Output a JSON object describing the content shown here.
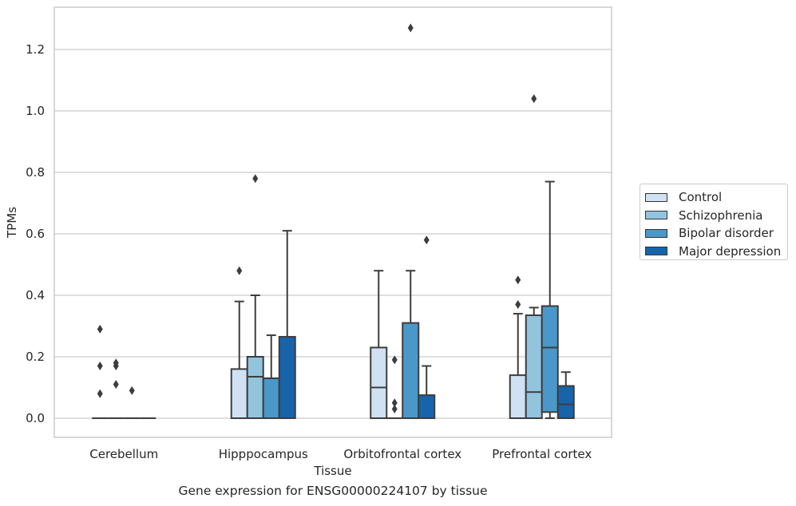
{
  "chart_data": {
    "type": "box",
    "xlabel": "Tissue",
    "ylabel": "TPMs",
    "ylim": [
      -0.06,
      1.34
    ],
    "yticks": [
      0.0,
      0.2,
      0.4,
      0.6,
      0.8,
      1.0,
      1.2
    ],
    "ytick_labels": [
      "0.0",
      "0.2",
      "0.4",
      "0.6",
      "0.8",
      "1.0",
      "1.2"
    ],
    "grid": "horizontal",
    "legend_placement": "outside-right",
    "categories": [
      "Cerebellum",
      "Hipppocampus",
      "Orbitofrontal cortex",
      "Prefrontal cortex"
    ],
    "series": [
      {
        "name": "Control",
        "color": "#cfe1f2",
        "boxes": [
          {
            "q1": 0.0,
            "median": 0.0,
            "q3": 0.0,
            "whislo": 0.0,
            "whishi": 0.0,
            "fliers": [
              0.29,
              0.17,
              0.08
            ]
          },
          {
            "q1": 0.0,
            "median": 0.0,
            "q3": 0.16,
            "whislo": 0.0,
            "whishi": 0.38,
            "fliers": [
              0.48
            ]
          },
          {
            "q1": 0.0,
            "median": 0.1,
            "q3": 0.23,
            "whislo": 0.0,
            "whishi": 0.48,
            "fliers": []
          },
          {
            "q1": 0.0,
            "median": 0.0,
            "q3": 0.14,
            "whislo": 0.0,
            "whishi": 0.34,
            "fliers": [
              0.45,
              0.37
            ]
          }
        ]
      },
      {
        "name": "Schizophrenia",
        "color": "#93c4de",
        "boxes": [
          {
            "q1": 0.0,
            "median": 0.0,
            "q3": 0.0,
            "whislo": 0.0,
            "whishi": 0.0,
            "fliers": [
              0.18,
              0.17,
              0.11
            ]
          },
          {
            "q1": 0.0,
            "median": 0.135,
            "q3": 0.2,
            "whislo": 0.0,
            "whishi": 0.4,
            "fliers": [
              0.78
            ]
          },
          {
            "q1": 0.0,
            "median": 0.0,
            "q3": 0.0,
            "whislo": 0.0,
            "whishi": 0.0,
            "fliers": [
              0.19,
              0.05,
              0.03
            ]
          },
          {
            "q1": 0.0,
            "median": 0.085,
            "q3": 0.335,
            "whislo": 0.0,
            "whishi": 0.36,
            "fliers": [
              1.04
            ]
          }
        ]
      },
      {
        "name": "Bipolar disorder",
        "color": "#4a98c9",
        "boxes": [
          {
            "q1": 0.0,
            "median": 0.0,
            "q3": 0.0,
            "whislo": 0.0,
            "whishi": 0.0,
            "fliers": [
              0.09
            ]
          },
          {
            "q1": 0.0,
            "median": 0.13,
            "q3": 0.13,
            "whislo": 0.0,
            "whishi": 0.27,
            "fliers": []
          },
          {
            "q1": 0.0,
            "median": 0.0,
            "q3": 0.31,
            "whislo": 0.0,
            "whishi": 0.48,
            "fliers": [
              1.27
            ]
          },
          {
            "q1": 0.02,
            "median": 0.23,
            "q3": 0.365,
            "whislo": 0.0,
            "whishi": 0.77,
            "fliers": []
          }
        ]
      },
      {
        "name": "Major depression",
        "color": "#1764ab",
        "boxes": [
          {
            "q1": 0.0,
            "median": 0.0,
            "q3": 0.0,
            "whislo": 0.0,
            "whishi": 0.0,
            "fliers": []
          },
          {
            "q1": 0.0,
            "median": 0.0,
            "q3": 0.265,
            "whislo": 0.0,
            "whishi": 0.61,
            "fliers": []
          },
          {
            "q1": 0.0,
            "median": 0.0,
            "q3": 0.075,
            "whislo": 0.0,
            "whishi": 0.17,
            "fliers": [
              0.58
            ]
          },
          {
            "q1": 0.0,
            "median": 0.045,
            "q3": 0.105,
            "whislo": 0.0,
            "whishi": 0.15,
            "fliers": []
          }
        ]
      }
    ],
    "caption": "Gene expression for ENSG00000224107 by tissue"
  }
}
